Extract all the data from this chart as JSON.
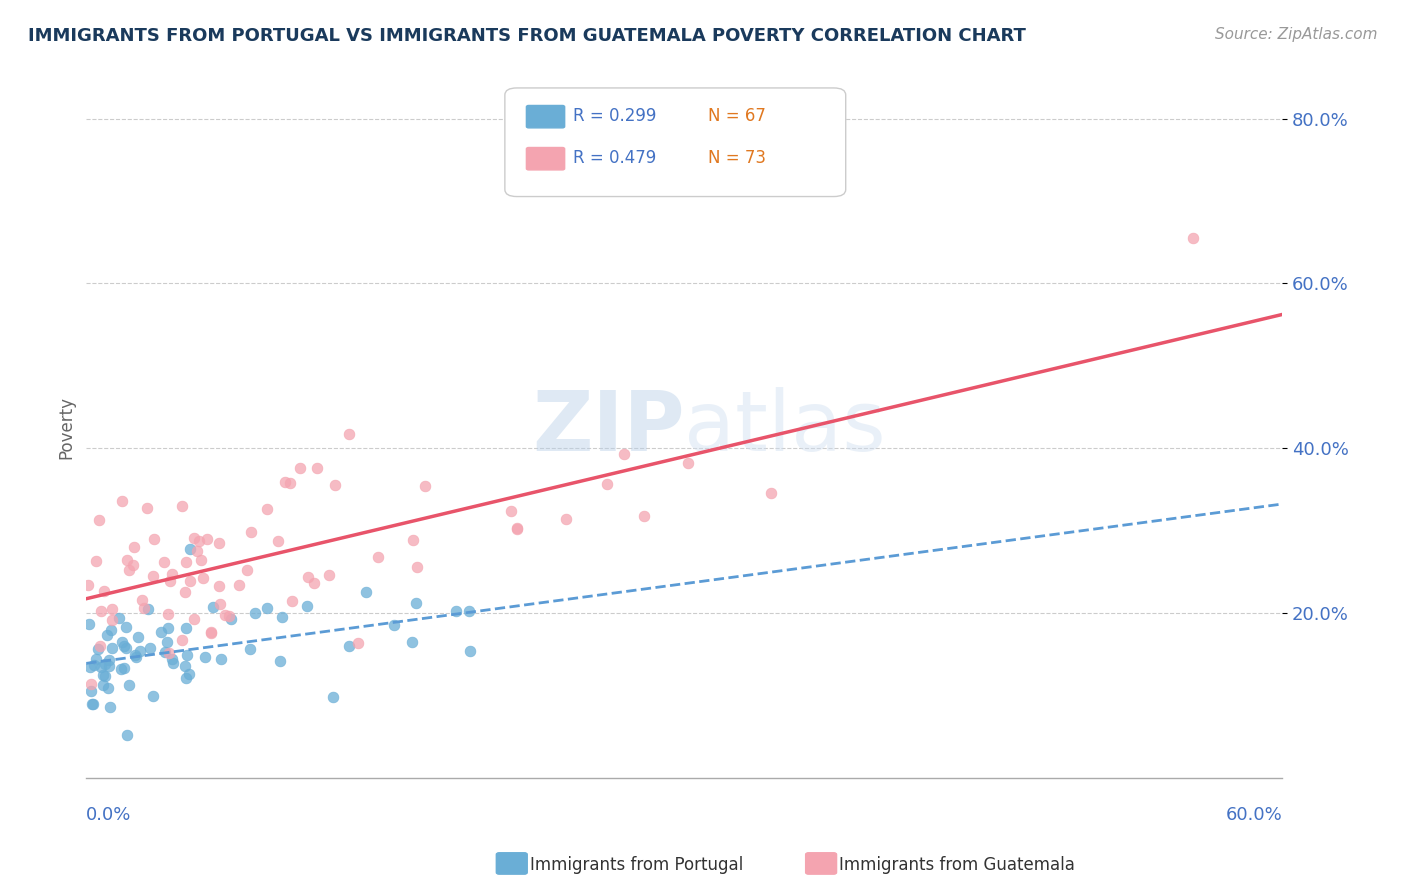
{
  "title": "IMMIGRANTS FROM PORTUGAL VS IMMIGRANTS FROM GUATEMALA POVERTY CORRELATION CHART",
  "source": "Source: ZipAtlas.com",
  "ylabel": "Poverty",
  "xlim": [
    0.0,
    0.6
  ],
  "ylim": [
    0.0,
    0.85
  ],
  "portugal_R": 0.299,
  "portugal_N": 67,
  "guatemala_R": 0.479,
  "guatemala_N": 73,
  "portugal_color": "#6aaed6",
  "guatemala_color": "#f4a4b0",
  "portugal_line_color": "#5b9bd5",
  "guatemala_line_color": "#e8546a",
  "scatter_alpha": 0.75,
  "scatter_size": 60,
  "watermark_zip": "ZIP",
  "watermark_atlas": "atlas",
  "watermark_color_zip": "#c8d8e8",
  "watermark_color_atlas": "#c8d8e8",
  "background_color": "#ffffff",
  "title_color": "#1a3a5c",
  "axis_label_color": "#4472c4",
  "n_color": "#e07820"
}
